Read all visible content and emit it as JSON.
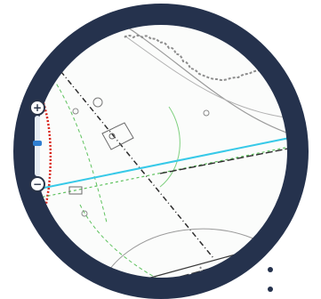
{
  "icons": {
    "zoom_in": "zoom-in-icon",
    "zoom_out": "zoom-out-icon"
  },
  "zoom_glyphs": {
    "in": "+",
    "out": "−"
  },
  "zoom_level": 0.45,
  "colors": {
    "frame": "#25324d",
    "cyan_line": "#37c9e8",
    "green_line": "#5ec25e",
    "red_boundary": "#d9261c",
    "road_line": "#2d2d2d",
    "accent_blue": "#2f7fd1"
  }
}
